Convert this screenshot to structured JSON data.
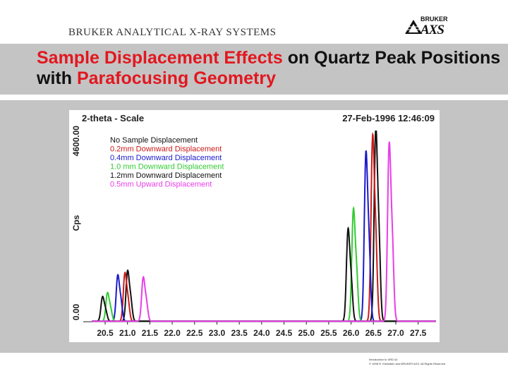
{
  "header": {
    "company": "BRUKER ANALYTICAL X-RAY SYSTEMS",
    "logo_top": "BRUKER",
    "logo_bottom": "AXS"
  },
  "title": {
    "highlight_1": "Sample Displacement Effects",
    "plain_1": " on Quartz Peak Positions with ",
    "highlight_2": "Parafocusing Geometry",
    "highlight_color": "#e2171f"
  },
  "chart_data": {
    "type": "line",
    "header_left": "2-theta - Scale",
    "header_right": "27-Feb-1996 12:46:09",
    "ylabel": "Cps",
    "ylim": [
      0,
      4600
    ],
    "ytick_labels": [
      "0.00",
      "4600.00"
    ],
    "xlim": [
      20.2,
      27.9
    ],
    "xticks": [
      "20.5",
      "21.0",
      "21.5",
      "22.0",
      "22.5",
      "23.0",
      "23.5",
      "24.0",
      "24.5",
      "25.0",
      "25.5",
      "26.0",
      "26.5",
      "27.0",
      "27.5"
    ],
    "series": [
      {
        "name": "No Sample Displacement",
        "color": "#111111",
        "peaks": [
          {
            "x": 21.0,
            "y": 1150
          },
          {
            "x": 26.55,
            "y": 4400
          }
        ]
      },
      {
        "name": "0.2mm Downward Displacement",
        "color": "#cc1a1a",
        "peaks": [
          {
            "x": 20.94,
            "y": 1100
          },
          {
            "x": 26.48,
            "y": 4220
          }
        ]
      },
      {
        "name": "0.4mm Downward Displacement",
        "color": "#1a1acc",
        "peaks": [
          {
            "x": 20.78,
            "y": 1050
          },
          {
            "x": 26.33,
            "y": 3850
          }
        ]
      },
      {
        "name": "1.0 mm Downward Displacement",
        "color": "#33cc33",
        "peaks": [
          {
            "x": 20.55,
            "y": 650
          },
          {
            "x": 26.05,
            "y": 2550
          }
        ]
      },
      {
        "name": "1.2mm Downward Displacement",
        "color": "#111111",
        "peaks": [
          {
            "x": 20.44,
            "y": 560
          },
          {
            "x": 25.93,
            "y": 2100
          }
        ]
      },
      {
        "name": "0.5mm Upward Displacement",
        "color": "#e83ee8",
        "peaks": [
          {
            "x": 21.35,
            "y": 1000
          },
          {
            "x": 26.85,
            "y": 4050
          }
        ]
      }
    ]
  },
  "footer": {
    "line1": "Introduction to XRD #2",
    "line2": "© 1998 R. Kleinstein and BRUKER AXS. All Rights Reserved"
  }
}
